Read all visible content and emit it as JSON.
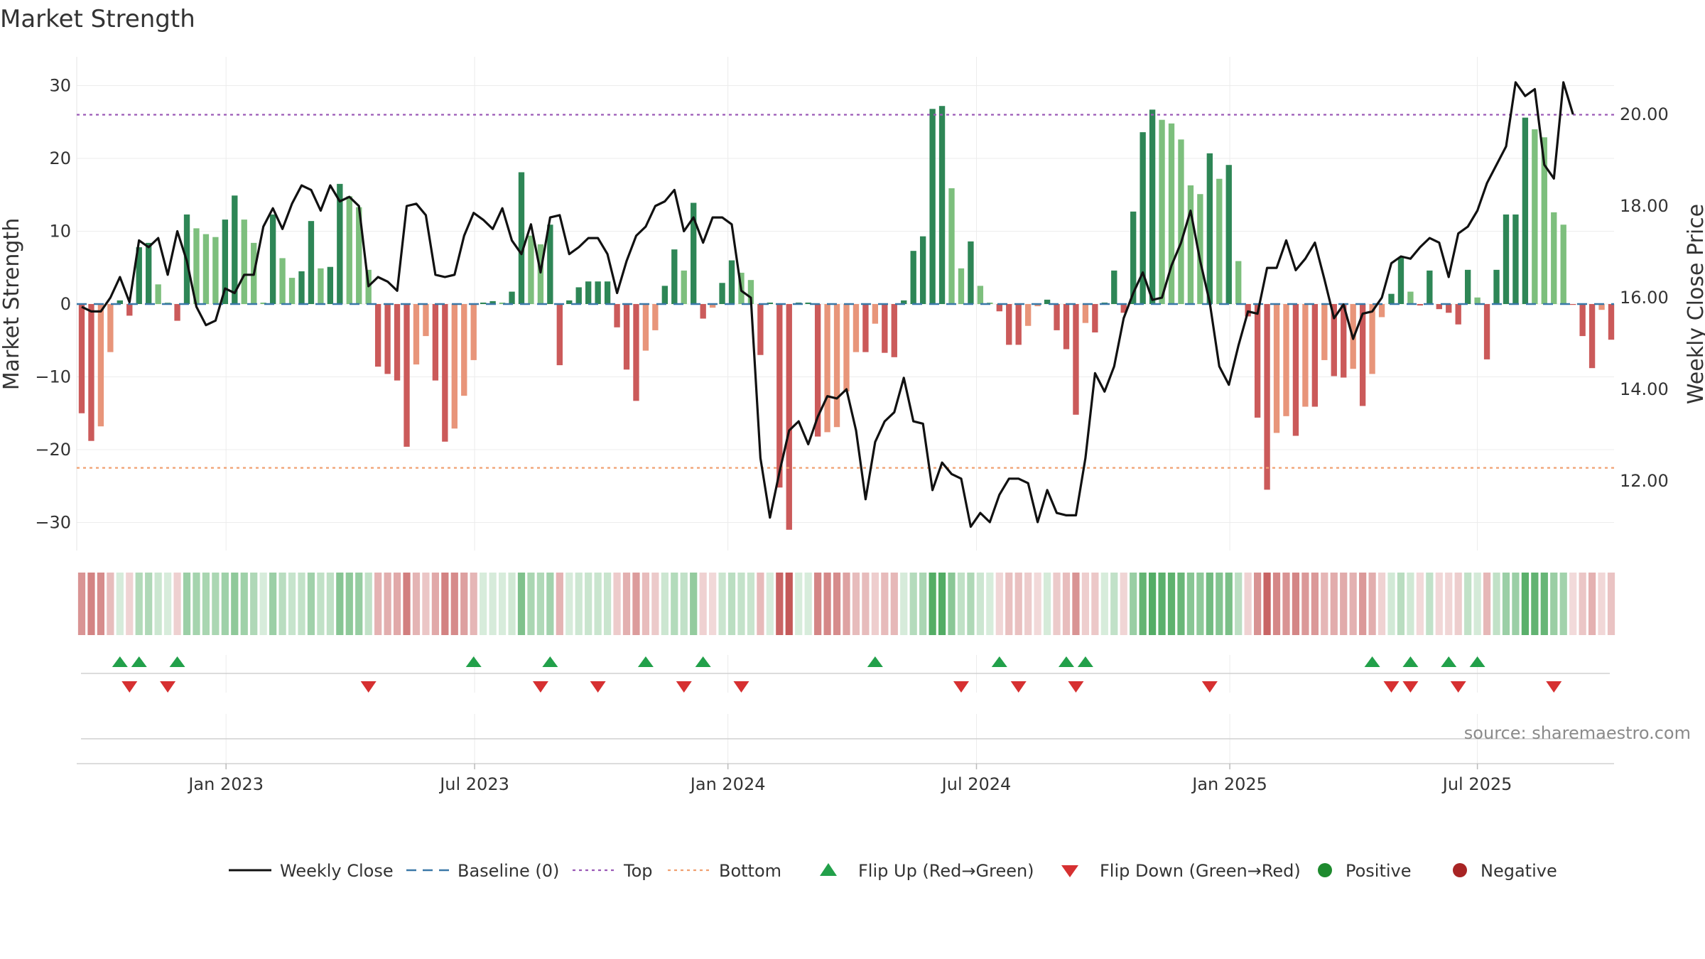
{
  "chart_data": {
    "type": "bar",
    "title": "Market Strength",
    "ylabel": "Market Strength",
    "y2label": "Weekly Close Price",
    "source": "source: sharemaestro.com",
    "ylim": [
      -34,
      34
    ],
    "y2lim": [
      10.5,
      21.2
    ],
    "top_line": 26,
    "bottom_line": -22.5,
    "left_ticks": [
      {
        "v": 30,
        "label": "30"
      },
      {
        "v": 20,
        "label": "20"
      },
      {
        "v": 10,
        "label": "10"
      },
      {
        "v": 0,
        "label": "0"
      },
      {
        "v": -10,
        "label": "−10"
      },
      {
        "v": -20,
        "label": "−20"
      },
      {
        "v": -30,
        "label": "−30"
      }
    ],
    "right_ticks": [
      {
        "v": 20,
        "label": "20.00"
      },
      {
        "v": 18,
        "label": "18.00"
      },
      {
        "v": 16,
        "label": "16.00"
      },
      {
        "v": 14,
        "label": "14.00"
      },
      {
        "v": 12,
        "label": "12.00"
      }
    ],
    "x_ticks": [
      {
        "week": 15.1,
        "label": "Jan 2023"
      },
      {
        "week": 41.1,
        "label": "Jul 2023"
      },
      {
        "week": 67.6,
        "label": "Jan 2024"
      },
      {
        "week": 93.6,
        "label": "Jul 2024"
      },
      {
        "week": 120.1,
        "label": "Jan 2025"
      },
      {
        "week": 146.0,
        "label": "Jul 2025"
      }
    ],
    "strength": [
      -15.0,
      -18.8,
      -16.8,
      -6.6,
      0.5,
      -1.6,
      7.8,
      8.4,
      2.7,
      0.2,
      -2.3,
      12.3,
      10.4,
      9.6,
      9.2,
      11.6,
      14.9,
      11.6,
      8.4,
      0.2,
      12.3,
      6.3,
      3.6,
      4.5,
      11.4,
      4.9,
      5.1,
      16.5,
      14.8,
      13.3,
      4.7,
      -8.6,
      -9.6,
      -10.5,
      -19.6,
      -8.3,
      -4.4,
      -10.5,
      -18.9,
      -17.1,
      -12.6,
      -7.7,
      0.2,
      0.4,
      0.2,
      1.7,
      18.1,
      9.4,
      8.2,
      10.9,
      -8.4,
      0.5,
      2.3,
      3.1,
      3.1,
      3.1,
      -3.2,
      -9.0,
      -13.3,
      -6.4,
      -3.6,
      2.5,
      7.5,
      4.6,
      13.9,
      -2.0,
      -0.5,
      2.9,
      6.0,
      4.3,
      3.3,
      -7.0,
      0.2,
      -25.2,
      -31.0,
      0.2,
      0.2,
      -18.2,
      -17.6,
      -16.9,
      -12.0,
      -6.6,
      -6.6,
      -2.7,
      -6.7,
      -7.3,
      0.5,
      7.3,
      9.3,
      26.8,
      27.2,
      15.9,
      4.9,
      8.6,
      2.5,
      0.2,
      -1.0,
      -5.6,
      -5.6,
      -3.0,
      -0.3,
      0.6,
      -3.6,
      -6.2,
      -15.2,
      -2.6,
      -3.9,
      0.2,
      4.6,
      -1.2,
      12.7,
      23.6,
      26.7,
      25.3,
      24.8,
      22.6,
      16.3,
      15.1,
      20.7,
      17.2,
      19.1,
      5.9,
      -1.7,
      -15.6,
      -25.5,
      -17.7,
      -15.4,
      -18.1,
      -14.1,
      -14.1,
      -7.7,
      -9.9,
      -10.1,
      -8.9,
      -14.0,
      -9.6,
      -1.8,
      1.4,
      6.4,
      1.7,
      -0.2,
      4.6,
      -0.7,
      -1.2,
      -2.8,
      4.7,
      0.9,
      -7.6,
      4.7,
      12.3,
      12.3,
      25.6,
      24.0,
      22.9,
      12.6,
      10.9,
      -0.1,
      -4.4,
      -8.8,
      -0.8,
      -4.9
    ],
    "price": [
      15.8,
      15.7,
      15.7,
      16.0,
      16.45,
      15.9,
      17.25,
      17.1,
      17.3,
      16.5,
      17.45,
      16.8,
      15.8,
      15.4,
      15.5,
      16.2,
      16.1,
      16.5,
      16.5,
      17.55,
      17.95,
      17.5,
      18.05,
      18.45,
      18.35,
      17.9,
      18.45,
      18.1,
      18.2,
      18.0,
      16.25,
      16.45,
      16.35,
      16.15,
      18.0,
      18.05,
      17.8,
      16.5,
      16.45,
      16.5,
      17.35,
      17.85,
      17.7,
      17.5,
      17.95,
      17.25,
      16.95,
      17.6,
      16.55,
      17.75,
      17.8,
      16.95,
      17.1,
      17.3,
      17.3,
      16.95,
      16.1,
      16.8,
      17.35,
      17.55,
      18.0,
      18.1,
      18.35,
      17.45,
      17.75,
      17.2,
      17.75,
      17.75,
      17.6,
      16.15,
      16.0,
      12.5,
      11.2,
      12.2,
      13.1,
      13.3,
      12.8,
      13.4,
      13.85,
      13.8,
      14.0,
      13.1,
      11.6,
      12.85,
      13.3,
      13.5,
      14.25,
      13.3,
      13.25,
      11.8,
      12.4,
      12.15,
      12.05,
      11.0,
      11.3,
      11.1,
      11.7,
      12.05,
      12.05,
      11.95,
      11.1,
      11.8,
      11.3,
      11.25,
      11.25,
      12.5,
      14.35,
      13.95,
      14.5,
      15.55,
      16.1,
      16.55,
      15.95,
      16.0,
      16.7,
      17.2,
      17.9,
      16.8,
      15.9,
      14.5,
      14.1,
      14.95,
      15.7,
      15.65,
      16.65,
      16.65,
      17.25,
      16.6,
      16.85,
      17.2,
      16.4,
      15.55,
      15.85,
      15.1,
      15.65,
      15.7,
      16.0,
      16.75,
      16.9,
      16.85,
      17.1,
      17.3,
      17.2,
      16.45,
      17.4,
      17.55,
      17.9,
      18.5,
      18.9,
      19.3,
      20.7,
      20.4,
      20.55,
      18.9,
      18.6,
      20.7,
      20.0
    ],
    "flip_up_weeks": [
      4,
      6,
      10,
      41,
      49,
      59,
      65,
      83,
      96,
      103,
      105,
      135,
      139,
      143,
      146
    ],
    "flip_down_weeks": [
      5,
      9,
      30,
      48,
      54,
      63,
      69,
      92,
      98,
      104,
      118,
      137,
      139,
      144,
      154
    ],
    "legend": [
      "Weekly Close",
      "Baseline (0)",
      "Top",
      "Bottom",
      "Flip Up (Red→Green)",
      "Flip Down (Green→Red)",
      "Positive",
      "Negative"
    ],
    "colors": {
      "pos_strong": "#2e8656",
      "pos_light": "#7dbf7d",
      "neg_strong": "#cb5a5a",
      "neg_light": "#e8957a",
      "top_line": "#9b59b6",
      "bottom_line": "#f0a070",
      "baseline": "#3a78a8",
      "close_line": "#111111",
      "flip_up": "#22a04a",
      "flip_down": "#d63031",
      "legend_positive": "#1e8a2e",
      "legend_negative": "#a82424"
    }
  }
}
